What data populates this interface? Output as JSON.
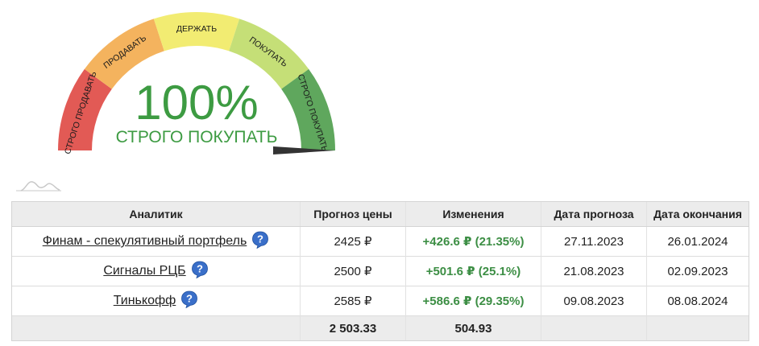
{
  "gauge": {
    "segments": [
      {
        "label": "СТРОГО ПРОДАВАТЬ",
        "color": "#e25a55"
      },
      {
        "label": "ПРОДАВАТЬ",
        "color": "#f4b35e"
      },
      {
        "label": "ДЕРЖАТЬ",
        "color": "#f2ec72"
      },
      {
        "label": "ПОКУПАТЬ",
        "color": "#c5df77"
      },
      {
        "label": "СТРОГО ПОКУПАТЬ",
        "color": "#5fa75d"
      }
    ],
    "percent": "100%",
    "verdict": "СТРОГО ПОКУПАТЬ",
    "value_fraction": 1.0,
    "accent_color": "#3d9b42"
  },
  "table": {
    "headers": [
      "Аналитик",
      "Прогноз цены",
      "Изменения",
      "Дата прогноза",
      "Дата окончания"
    ],
    "rows": [
      {
        "analyst": "Финам - спекулятивный портфель",
        "target": "2425 ₽",
        "change": "+426.6 ₽ (21.35%)",
        "forecast_date": "27.11.2023",
        "end_date": "26.01.2024"
      },
      {
        "analyst": "Сигналы РЦБ",
        "target": "2500 ₽",
        "change": "+501.6 ₽ (25.1%)",
        "forecast_date": "21.08.2023",
        "end_date": "02.09.2023"
      },
      {
        "analyst": "Тинькофф",
        "target": "2585 ₽",
        "change": "+586.6 ₽ (29.35%)",
        "forecast_date": "09.08.2023",
        "end_date": "08.08.2024"
      }
    ],
    "totals": {
      "analyst": "",
      "target": "2 503.33",
      "change": "504.93",
      "forecast_date": "",
      "end_date": ""
    }
  }
}
